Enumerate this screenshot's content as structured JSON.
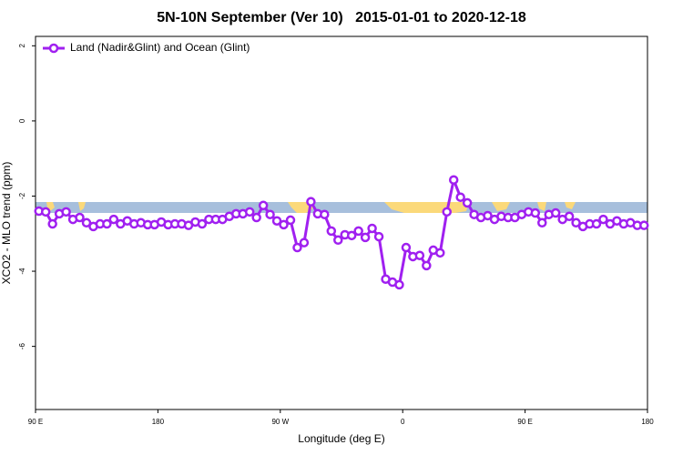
{
  "chart_data": {
    "type": "line",
    "title": "5N-10N September (Ver 10)   2015-01-01 to 2020-12-18",
    "x_label": "Longitude (deg E)",
    "y_label": "XCO2 - MLO trend (ppm)",
    "xlim": [
      90,
      540
    ],
    "xticks": [
      {
        "value": 90,
        "label": "90 E"
      },
      {
        "value": 180,
        "label": "180"
      },
      {
        "value": 270,
        "label": "90 W"
      },
      {
        "value": 360,
        "label": "0"
      },
      {
        "value": 450,
        "label": "90 E"
      },
      {
        "value": 540,
        "label": "180"
      }
    ],
    "ylim": [
      -7.68,
      2.25
    ],
    "yticks": [
      -6,
      -4,
      -2,
      0,
      2
    ],
    "grid": false,
    "legend": "top-left",
    "x": [
      92.5,
      97.5,
      102.5,
      107.5,
      112.5,
      117.5,
      122.5,
      127.5,
      132.5,
      137.5,
      142.5,
      147.5,
      152.5,
      157.5,
      162.5,
      167.5,
      172.5,
      177.5,
      182.5,
      187.5,
      192.5,
      197.5,
      202.5,
      207.5,
      212.5,
      217.5,
      222.5,
      227.5,
      232.5,
      237.5,
      242.5,
      247.5,
      252.5,
      257.5,
      262.5,
      267.5,
      272.5,
      277.5,
      282.5,
      287.5,
      292.5,
      297.5,
      302.5,
      307.5,
      312.5,
      317.5,
      322.5,
      327.5,
      332.5,
      337.5,
      342.5,
      347.5,
      352.5,
      357.5,
      362.5,
      367.5,
      372.5,
      377.5,
      382.5,
      387.5,
      392.5,
      397.5,
      402.5,
      407.5,
      412.5,
      417.5,
      422.5,
      427.5,
      432.5,
      437.5,
      442.5,
      447.5,
      452.5,
      457.5,
      462.5,
      467.5,
      472.5,
      477.5,
      482.5,
      487.5,
      492.5,
      497.5,
      502.5,
      507.5,
      512.5,
      517.5,
      522.5,
      527.5,
      532.5,
      537.5
    ],
    "series": [
      {
        "name": "Land (Nadir&Glint) and Ocean (Glint)",
        "color": "#a020f0",
        "values": [
          -2.4,
          -2.42,
          -2.74,
          -2.47,
          -2.42,
          -2.62,
          -2.57,
          -2.71,
          -2.81,
          -2.74,
          -2.74,
          -2.62,
          -2.74,
          -2.66,
          -2.74,
          -2.71,
          -2.76,
          -2.76,
          -2.69,
          -2.76,
          -2.74,
          -2.74,
          -2.78,
          -2.69,
          -2.74,
          -2.62,
          -2.62,
          -2.62,
          -2.54,
          -2.47,
          -2.47,
          -2.42,
          -2.57,
          -2.25,
          -2.49,
          -2.66,
          -2.76,
          -2.64,
          -3.37,
          -3.24,
          -2.15,
          -2.47,
          -2.49,
          -2.93,
          -3.17,
          -3.03,
          -3.05,
          -2.93,
          -3.1,
          -2.86,
          -3.08,
          -4.21,
          -4.29,
          -4.36,
          -3.37,
          -3.61,
          -3.58,
          -3.85,
          -3.44,
          -3.51,
          -2.42,
          -1.57,
          -2.03,
          -2.18,
          -2.49,
          -2.57,
          -2.52,
          -2.62,
          -2.54,
          -2.57,
          -2.57,
          -2.49,
          -2.42,
          -2.45,
          -2.71,
          -2.49,
          -2.45,
          -2.62,
          -2.54,
          -2.71,
          -2.81,
          -2.74,
          -2.74,
          -2.62,
          -2.74,
          -2.66,
          -2.74,
          -2.71,
          -2.78,
          -2.78
        ]
      }
    ]
  }
}
